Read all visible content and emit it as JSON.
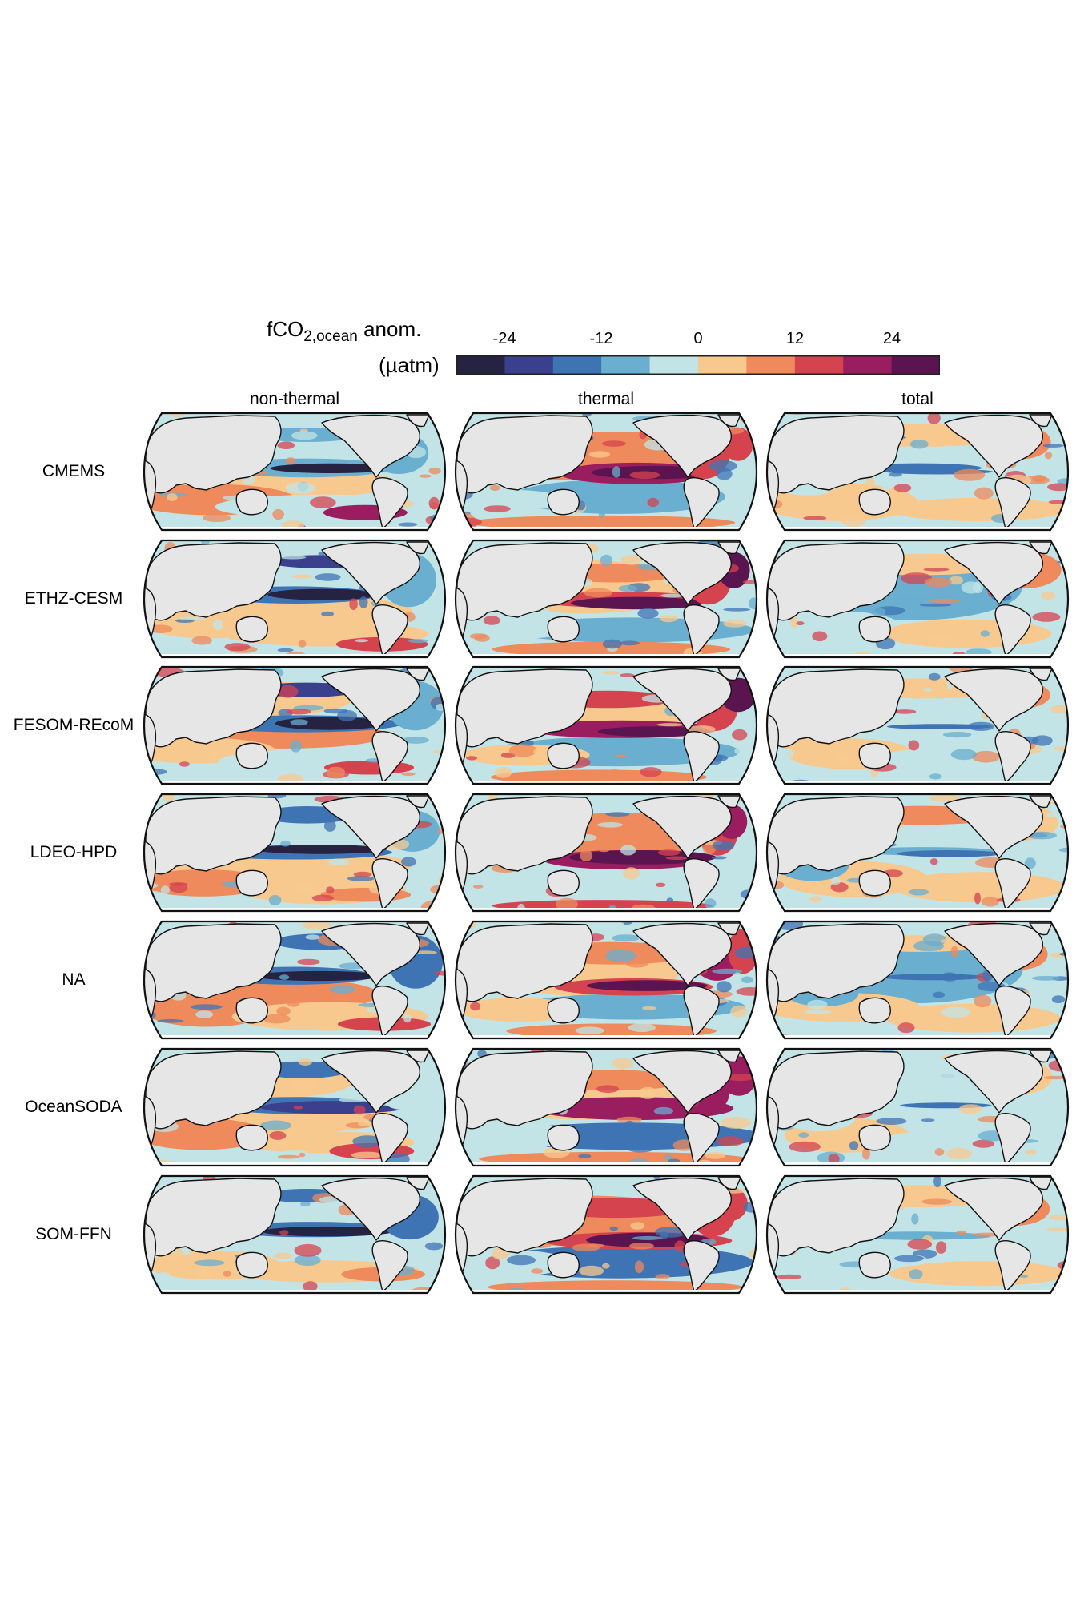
{
  "colorbar": {
    "title_main": "fCO",
    "title_sub": "2,ocean",
    "title_suffix": " anom.",
    "unit": "(µatm)",
    "ticks": [
      "-24",
      "-12",
      "0",
      "12",
      "24"
    ],
    "colors": [
      "#262242",
      "#3a3f8e",
      "#3f74b4",
      "#6aaed0",
      "#c2e4e6",
      "#f8c98f",
      "#ee8a5b",
      "#d5434f",
      "#9a1e5f",
      "#5a1550"
    ]
  },
  "chart_data": {
    "type": "heatmap",
    "columns": [
      "non-thermal",
      "thermal",
      "total"
    ],
    "rows": [
      "CMEMS",
      "ETHZ-CESM",
      "FESOM-REcoM",
      "LDEO-HPD",
      "NA",
      "OceanSODA",
      "SOM-FFN"
    ],
    "levels": [
      -30,
      -24,
      -18,
      -12,
      -6,
      0,
      6,
      12,
      18,
      24,
      30
    ],
    "projection": "robinson, pacific-centered",
    "land_color": "#e6e6e6"
  }
}
